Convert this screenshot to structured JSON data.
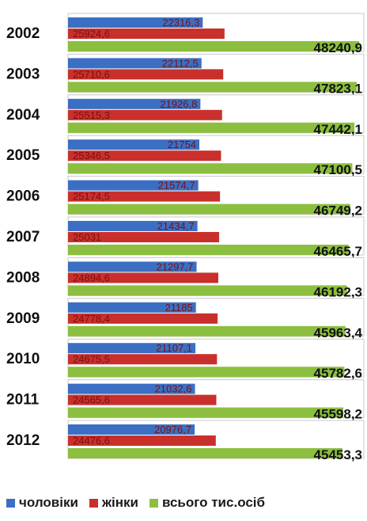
{
  "chart_data": {
    "type": "bar",
    "orientation": "horizontal",
    "categories": [
      "2002",
      "2003",
      "2004",
      "2005",
      "2006",
      "2007",
      "2008",
      "2009",
      "2010",
      "2011",
      "2012"
    ],
    "series": [
      {
        "name": "чоловіки",
        "color": "#3b6fc4",
        "values": [
          22316.3,
          22112.5,
          21926.8,
          21754,
          21574.7,
          21434.7,
          21297.7,
          21185,
          21107.1,
          21032.6,
          20976.7
        ],
        "labels": [
          "22316,3",
          "22112,5",
          "21926,8",
          "21754",
          "21574,7",
          "21434,7",
          "21297,7",
          "21185",
          "21107,1",
          "21032,6",
          "20976,7"
        ]
      },
      {
        "name": "жінки",
        "color": "#c9302c",
        "values": [
          25924.6,
          25710.6,
          25515.3,
          25346.5,
          25174.5,
          25031,
          24894.6,
          24778.4,
          24675.5,
          24565.6,
          24476.6
        ],
        "labels": [
          "25924,6",
          "25710,6",
          "25515,3",
          "25346,5",
          "25174,5",
          "25031",
          "24894,6",
          "24778,4",
          "24675,5",
          "24565,6",
          "24476,6"
        ]
      },
      {
        "name": "всього тис.осіб",
        "color": "#8cbf3f",
        "values": [
          48240.9,
          47823.1,
          47442.1,
          47100.5,
          46749.2,
          46465.7,
          46192.3,
          45963.4,
          45782.6,
          45598.2,
          45453.3
        ],
        "labels": [
          "48240,9",
          "47823,1",
          "47442,1",
          "47100,5",
          "46749,2",
          "46465,7",
          "46192,3",
          "45963,4",
          "45782,6",
          "45598,2",
          "45453,3"
        ]
      }
    ],
    "xlim": [
      0,
      49000
    ],
    "grid": false,
    "legend": "bottom",
    "label_color": "#7a1010"
  }
}
